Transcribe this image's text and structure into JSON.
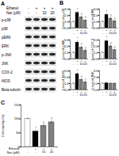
{
  "panel_labels": [
    "A",
    "B",
    "C"
  ],
  "conditions": {
    "rows": [
      {
        "label": "Ethanol",
        "values": [
          "-",
          "+",
          "+",
          "+"
        ]
      },
      {
        "label": "Nar (μM)",
        "values": [
          "-",
          "-",
          "10",
          "20"
        ]
      }
    ]
  },
  "blot": {
    "bands": [
      "p-p38",
      "p38",
      "pERK",
      "ERK",
      "p-JNK",
      "JNK",
      "COX-2",
      "iNOS",
      "Beta-tubulin"
    ]
  },
  "chart_data": [
    {
      "type": "bar",
      "panel": "B",
      "y_label": "Level of p-p38",
      "values": [
        1,
        2.4,
        1.7,
        1.2
      ],
      "errors": [
        0.1,
        0.25,
        0.2,
        0.15
      ],
      "annotations": [
        null,
        "*",
        "#",
        "#"
      ],
      "colors": [
        "#ffffff",
        "#000000",
        "#808080",
        "#808080"
      ],
      "ylim": [
        0,
        3
      ],
      "yticks": [
        0,
        1,
        2,
        3
      ]
    },
    {
      "type": "bar",
      "panel": "B",
      "y_label": "Level of pERK",
      "values": [
        1,
        2.1,
        1.5,
        1.1
      ],
      "errors": [
        0.1,
        0.2,
        0.15,
        0.1
      ],
      "annotations": [
        null,
        "*",
        "#",
        "#"
      ],
      "colors": [
        "#ffffff",
        "#000000",
        "#808080",
        "#808080"
      ],
      "ylim": [
        0,
        3
      ],
      "yticks": [
        0,
        1,
        2,
        3
      ]
    },
    {
      "type": "bar",
      "panel": "B",
      "y_label": "Level of pJNK",
      "values": [
        1,
        2.6,
        1.8,
        1.3
      ],
      "errors": [
        0.1,
        0.25,
        0.2,
        0.15
      ],
      "annotations": [
        null,
        "*",
        "#",
        "#"
      ],
      "colors": [
        "#ffffff",
        "#000000",
        "#808080",
        "#808080"
      ],
      "ylim": [
        0,
        3
      ],
      "yticks": [
        0,
        1,
        2,
        3
      ]
    },
    {
      "type": "bar",
      "panel": "B",
      "y_label": "Level of COX-2",
      "values": [
        1,
        2.8,
        2,
        1.4
      ],
      "errors": [
        0.1,
        0.2,
        0.2,
        0.15
      ],
      "annotations": [
        null,
        "*",
        "#",
        "#"
      ],
      "colors": [
        "#ffffff",
        "#000000",
        "#808080",
        "#808080"
      ],
      "ylim": [
        0,
        3
      ],
      "yticks": [
        0,
        1,
        2,
        3
      ]
    },
    {
      "type": "bar",
      "panel": "B",
      "y_label": "Level of iNOS",
      "values": [
        1,
        2.5,
        1.6,
        1.2
      ],
      "errors": [
        0.1,
        0.2,
        0.15,
        0.1
      ],
      "annotations": [
        null,
        "*",
        "#",
        "#"
      ],
      "colors": [
        "#ffffff",
        "#000000",
        "#808080",
        "#808080"
      ],
      "ylim": [
        0,
        3
      ],
      "yticks": [
        0,
        1,
        2,
        3
      ]
    },
    {
      "type": "bar",
      "panel": "B",
      "y_label": "Level of JNK",
      "values": [
        1,
        1.05,
        1,
        1
      ],
      "errors": [
        0.1,
        0.1,
        0.1,
        0.1
      ],
      "annotations": [
        null,
        null,
        null,
        null
      ],
      "colors": [
        "#ffffff",
        "#000000",
        "#808080",
        "#808080"
      ],
      "ylim": [
        0,
        3
      ],
      "yticks": [
        0,
        1,
        2,
        3
      ]
    },
    {
      "type": "bar",
      "panel": "C",
      "y_label": "Cell viability (%)",
      "values": [
        100,
        55,
        75,
        88
      ],
      "errors": [
        5,
        6,
        6,
        5
      ],
      "annotations": [
        null,
        "*",
        "#",
        "#"
      ],
      "colors": [
        "#ffffff",
        "#000000",
        "#808080",
        "#808080"
      ],
      "ylim": [
        0,
        150
      ],
      "yticks": [
        0,
        50,
        100,
        150
      ]
    }
  ]
}
